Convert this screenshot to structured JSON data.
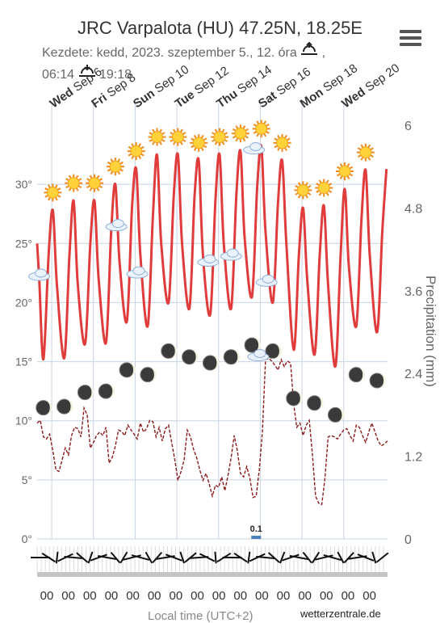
{
  "header": {
    "title": "JRC Varpalota (HU) 47.25N, 18.25E",
    "subtitle_line1": "Kezdete: kedd, 2023. szeptember 5., 12. óra",
    "sunrise": "06:14",
    "sunset": "19:18"
  },
  "credit": "wetterzentrale.de",
  "colors": {
    "temperature": "#e03c3c",
    "precipitation": "#8b1a1a",
    "grid": "#c8d4e4",
    "axis_text": "#666666"
  },
  "chart_data": {
    "type": "line",
    "x_axis": {
      "title": "Local time (UTC+2)",
      "tick_labels": [
        "00",
        "00",
        "00",
        "00",
        "00",
        "00",
        "00",
        "00",
        "00",
        "00",
        "00",
        "00",
        "00",
        "00",
        "00",
        "00"
      ]
    },
    "top_axis": {
      "labels": [
        "Wed Sep 6",
        "Fri Sep 8",
        "Sun Sep 10",
        "Tue Sep 12",
        "Thu Sep 14",
        "Sat Sep 16",
        "Mon Sep 18",
        "Wed Sep 20"
      ]
    },
    "y_left": {
      "ticks": [
        "0°",
        "5°",
        "10°",
        "15°",
        "20°",
        "25°",
        "30°"
      ],
      "range": [
        0,
        35
      ]
    },
    "y_right": {
      "title": "Precipitation (mm)",
      "ticks": [
        "0",
        "1.2",
        "2.4",
        "3.6",
        "4.8",
        "6"
      ],
      "range": [
        0,
        6
      ]
    },
    "series": [
      {
        "type": "line",
        "x_days": [
          0,
          0.1,
          0.3,
          0.55,
          0.75,
          0.95,
          1.3,
          1.55,
          1.75,
          1.95,
          2.3,
          2.55,
          2.75,
          2.95,
          3.3,
          3.55,
          3.75,
          3.95,
          4.3,
          4.55,
          4.75,
          4.95,
          5.3,
          5.55,
          5.75,
          5.95,
          6.3,
          6.55,
          6.75,
          6.95,
          7.3,
          7.55,
          7.75,
          7.95,
          8.3,
          8.55,
          8.75,
          8.95,
          9.3,
          9.55,
          9.75,
          9.95,
          10.3,
          10.55,
          10.75,
          10.95,
          11.3,
          11.55,
          11.75,
          11.95,
          12.3,
          12.55,
          12.75,
          12.95,
          13.3,
          13.55,
          13.75,
          13.95,
          14.3,
          14.55,
          14.75,
          14.95,
          15.3,
          15.55,
          15.75,
          15.95,
          16.3,
          16.55,
          16.75
        ],
        "values": [
          25,
          22,
          15.2,
          24,
          27.8,
          21.5,
          15.3,
          24,
          28.6,
          21.5,
          16.5,
          25,
          28.6,
          22,
          16.6,
          26,
          30,
          23.5,
          18.4,
          28,
          31.3,
          24,
          18,
          27.3,
          32.5,
          25,
          20,
          29,
          32.5,
          25,
          19.5,
          29,
          32,
          24,
          19,
          28.7,
          32.5,
          25,
          19.5,
          29,
          32.8,
          25.5,
          20.5,
          29.7,
          33.2,
          26,
          20,
          28.5,
          32,
          25,
          16,
          24,
          28,
          22,
          15.6,
          24,
          28.2,
          21.5,
          14.6,
          24,
          29.6,
          23,
          18,
          27,
          31.2,
          24,
          17.5,
          26,
          31.3
        ]
      },
      {
        "type": "line",
        "x_days": [
          0,
          0.15,
          0.3,
          0.45,
          0.6,
          0.75,
          0.9,
          1.05,
          1.2,
          1.35,
          1.5,
          1.65,
          1.8,
          1.95,
          2.1,
          2.25,
          2.4,
          2.55,
          2.7,
          2.85,
          3,
          3.15,
          3.3,
          3.45,
          3.6,
          3.75,
          3.9,
          4.05,
          4.2,
          4.35,
          4.5,
          4.65,
          4.8,
          4.95,
          5.1,
          5.25,
          5.4,
          5.55,
          5.7,
          5.85,
          6,
          6.15,
          6.3,
          6.45,
          6.6,
          6.75,
          6.9,
          7.05,
          7.2,
          7.35,
          7.5,
          7.65,
          7.8,
          7.95,
          8.1,
          8.25,
          8.4,
          8.55,
          8.7,
          8.85,
          9,
          9.15,
          9.3,
          9.45,
          9.6,
          9.75,
          9.9,
          10.05,
          10.2,
          10.35,
          10.5,
          10.65,
          10.8,
          10.95,
          11.1,
          11.25,
          11.4,
          11.55,
          11.7,
          11.85,
          12,
          12.15,
          12.3,
          12.45,
          12.6,
          12.75,
          12.9,
          13.05,
          13.2,
          13.35,
          13.5,
          13.65,
          13.8,
          13.95,
          14.1,
          14.25,
          14.4,
          14.55,
          14.7,
          14.85,
          15,
          15.15,
          15.3,
          15.45,
          15.6,
          15.75,
          15.9,
          16.05,
          16.2,
          16.35,
          16.5,
          16.65,
          16.8
        ],
        "values": [
          1.68,
          1.72,
          1.48,
          1.45,
          1.52,
          1.28,
          1.0,
          0.98,
          1.15,
          1.32,
          1.22,
          1.5,
          1.62,
          1.6,
          1.48,
          1.9,
          1.8,
          1.32,
          1.4,
          1.5,
          1.55,
          1.5,
          1.62,
          1.1,
          1.18,
          1.35,
          1.58,
          1.56,
          1.5,
          1.65,
          1.58,
          1.52,
          1.45,
          1.68,
          1.55,
          1.6,
          1.72,
          1.7,
          1.48,
          1.62,
          1.42,
          1.6,
          1.65,
          1.4,
          1.15,
          0.85,
          0.98,
          1.15,
          1.58,
          1.48,
          1.3,
          1.18,
          1.0,
          0.85,
          0.95,
          0.8,
          0.62,
          0.78,
          0.75,
          0.9,
          0.7,
          0.92,
          1.18,
          1.5,
          1.28,
          0.95,
          0.9,
          1.05,
          0.88,
          0.6,
          0.62,
          1.0,
          1.55,
          2.6,
          2.62,
          2.58,
          2.52,
          2.45,
          2.6,
          2.5,
          2.58,
          2.55,
          1.95,
          1.62,
          1.68,
          1.5,
          1.65,
          1.72,
          1.22,
          0.62,
          0.52,
          0.5,
          0.88,
          1.48,
          1.5,
          1.48,
          1.45,
          1.52,
          1.58,
          1.6,
          1.5,
          1.42,
          1.65,
          1.62,
          1.5,
          1.4,
          1.55,
          1.68,
          1.55,
          1.42,
          1.35,
          1.38,
          1.42
        ]
      },
      {
        "type": "bar",
        "labels": [
          "0.1"
        ],
        "label_day": 10.5
      }
    ],
    "grid": true,
    "legend": "none"
  }
}
